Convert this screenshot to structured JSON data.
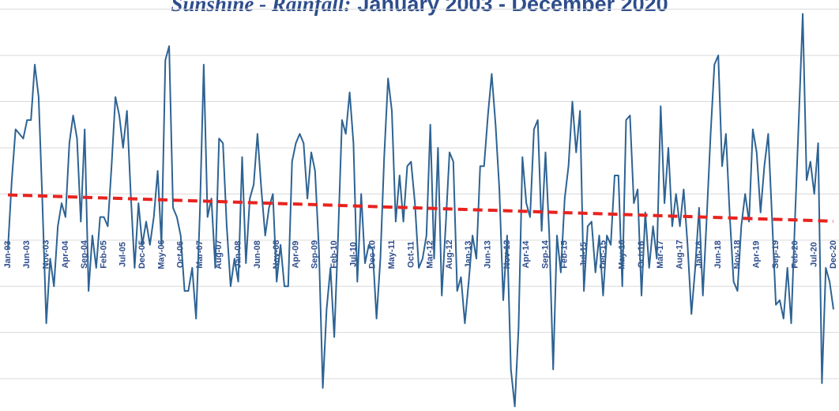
{
  "chart_data": {
    "type": "line",
    "title": "Sunshine - Rainfall:",
    "title_detail": "January 2003 - December 2020",
    "categories": [
      "Jan-03",
      null,
      null,
      null,
      null,
      "Jun-03",
      null,
      null,
      null,
      null,
      "Nov-03",
      null,
      null,
      null,
      null,
      "Apr-04",
      null,
      null,
      null,
      null,
      "Sep-04",
      null,
      null,
      null,
      null,
      "Feb-05",
      null,
      null,
      null,
      null,
      "Jul-05",
      null,
      null,
      null,
      null,
      "Dec-05",
      null,
      null,
      null,
      null,
      "May-06",
      null,
      null,
      null,
      null,
      "Oct-06",
      null,
      null,
      null,
      null,
      "Mar-07",
      null,
      null,
      null,
      null,
      "Aug-07",
      null,
      null,
      null,
      null,
      "Jan-08",
      null,
      null,
      null,
      null,
      "Jun-08",
      null,
      null,
      null,
      null,
      "Nov-08",
      null,
      null,
      null,
      null,
      "Apr-09",
      null,
      null,
      null,
      null,
      "Sep-09",
      null,
      null,
      null,
      null,
      "Feb-10",
      null,
      null,
      null,
      null,
      "Jul-10",
      null,
      null,
      null,
      null,
      "Dec-10",
      null,
      null,
      null,
      null,
      "May-11",
      null,
      null,
      null,
      null,
      "Oct-11",
      null,
      null,
      null,
      null,
      "Mar-12",
      null,
      null,
      null,
      null,
      "Aug-12",
      null,
      null,
      null,
      null,
      "Jan-13",
      null,
      null,
      null,
      null,
      "Jun-13",
      null,
      null,
      null,
      null,
      "Nov-13",
      null,
      null,
      null,
      null,
      "Apr-14",
      null,
      null,
      null,
      null,
      "Sep-14",
      null,
      null,
      null,
      null,
      "Feb-15",
      null,
      null,
      null,
      null,
      "Jul-15",
      null,
      null,
      null,
      null,
      "Dec-15",
      null,
      null,
      null,
      null,
      "May-16",
      null,
      null,
      null,
      null,
      "Oct-16",
      null,
      null,
      null,
      null,
      "Mar-17",
      null,
      null,
      null,
      null,
      "Aug-17",
      null,
      null,
      null,
      null,
      "Jan-18",
      null,
      null,
      null,
      null,
      "Jun-18",
      null,
      null,
      null,
      null,
      "Nov-18",
      null,
      null,
      null,
      null,
      "Apr-19",
      null,
      null,
      null,
      null,
      "Sep-19",
      null,
      null,
      null,
      null,
      "Feb-20",
      null,
      null,
      null,
      null,
      "Jul-20",
      null,
      null,
      null,
      null,
      "Dec-20"
    ],
    "series": [
      {
        "color": "#2e6393",
        "values": [
          -0.2,
          1.3,
          2.4,
          2.3,
          2.2,
          2.6,
          2.6,
          3.8,
          3.1,
          0.8,
          -1.8,
          -0.4,
          -1.0,
          0.3,
          0.8,
          0.5,
          2.1,
          2.7,
          2.2,
          0.4,
          2.4,
          -1.1,
          0.1,
          -0.6,
          0.5,
          0.5,
          0.3,
          1.6,
          3.1,
          2.7,
          2.0,
          2.8,
          1.0,
          -0.6,
          0.8,
          -0.1,
          0.4,
          -0.1,
          0.5,
          1.5,
          -0.1,
          3.9,
          4.2,
          0.7,
          0.5,
          0.1,
          -1.1,
          -1.1,
          -0.6,
          -1.7,
          0.6,
          3.8,
          0.5,
          0.9,
          -0.6,
          2.2,
          2.1,
          0.3,
          -1.0,
          -0.4,
          -0.9,
          1.8,
          -0.5,
          0.9,
          1.2,
          2.3,
          1.1,
          0.1,
          0.7,
          1.0,
          -0.9,
          -0.1,
          -1.0,
          -1.0,
          1.7,
          2.1,
          2.3,
          2.1,
          0.9,
          1.9,
          1.5,
          -0.2,
          -3.2,
          -1.5,
          -0.6,
          -2.1,
          0.1,
          2.6,
          2.3,
          3.2,
          2.1,
          -0.9,
          1.0,
          -0.5,
          -0.1,
          -0.2,
          -1.7,
          -0.4,
          1.8,
          3.5,
          2.8,
          0.4,
          1.4,
          0.4,
          1.6,
          1.7,
          0.8,
          -0.6,
          -0.4,
          0.1,
          2.5,
          -0.4,
          2.0,
          -1.2,
          0.3,
          1.9,
          1.7,
          -1.1,
          -0.8,
          -1.8,
          -0.9,
          0.1,
          -0.4,
          1.6,
          1.6,
          2.7,
          3.6,
          2.5,
          1.1,
          -1.3,
          0.1,
          -2.8,
          -3.6,
          -1.9,
          1.8,
          0.8,
          0.5,
          2.4,
          2.6,
          0.2,
          1.9,
          0.1,
          -2.8,
          0.1,
          -0.7,
          0.9,
          1.6,
          3.0,
          1.9,
          2.8,
          -1.1,
          0.3,
          0.4,
          -0.7,
          0.1,
          -1.2,
          0.1,
          -0.1,
          1.4,
          1.4,
          -1.0,
          2.6,
          2.7,
          0.8,
          1.1,
          -1.2,
          0.6,
          -0.6,
          0.3,
          -0.4,
          2.9,
          0.8,
          2.0,
          0.3,
          1.0,
          0.3,
          1.1,
          -0.1,
          -1.6,
          -0.6,
          0.7,
          -1.2,
          0.5,
          2.3,
          3.8,
          4.0,
          1.6,
          2.3,
          0.5,
          -0.9,
          -1.1,
          0.3,
          1.0,
          0.4,
          2.4,
          1.9,
          0.6,
          1.6,
          2.3,
          0.5,
          -1.4,
          -1.3,
          -1.7,
          -0.6,
          -1.8,
          0.5,
          2.7,
          4.9,
          1.3,
          1.7,
          1.0,
          2.1,
          -3.1,
          -0.6,
          -0.9,
          -1.5
        ]
      }
    ],
    "trend": {
      "color": "#e8231f",
      "start": 0.98,
      "end": 0.41
    },
    "ylim": [
      -3.7,
      5.2
    ],
    "yticks": [
      -3,
      -2,
      -1,
      0,
      1,
      2,
      3,
      4,
      5
    ],
    "grid": true
  }
}
